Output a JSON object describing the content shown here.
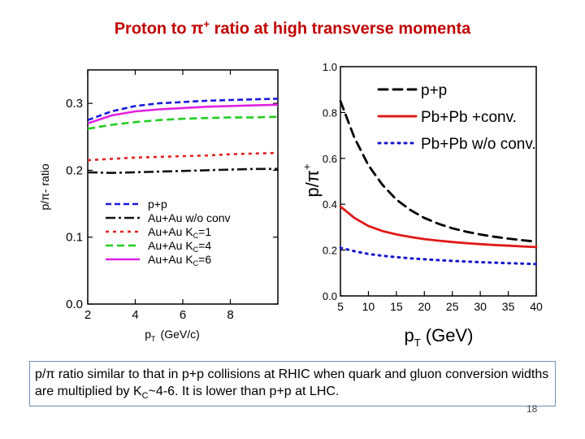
{
  "slide": {
    "title_main": "Proton to π",
    "title_sup": "+",
    "title_rest": " ratio at high transverse momenta",
    "caption_a": "p/π ratio similar to that in p+p collisions at RHIC when quark and gluon conversion widths are multiplied by K",
    "caption_sub": "C",
    "caption_b": "~4-6. It is lower than p+p at LHC.",
    "page_number": "18"
  },
  "chart_data": [
    {
      "type": "line",
      "title": "",
      "xlabel": "p T (GeV/c)",
      "ylabel": "p/π- ratio",
      "xlim": [
        2,
        10
      ],
      "ylim": [
        0,
        0.35
      ],
      "xticks": [
        2,
        4,
        6,
        8
      ],
      "xtick_labels": [
        "2",
        "4",
        "6",
        "8"
      ],
      "yticks": [
        0.0,
        0.1,
        0.2,
        0.3
      ],
      "ytick_labels": [
        "0.0",
        "0.1",
        "0.2",
        "0.3"
      ],
      "legend_position": "lower-right",
      "x": [
        2,
        3,
        4,
        5,
        6,
        7,
        8,
        9,
        10
      ],
      "series": [
        {
          "name": "p+p",
          "color": "#1a1adc",
          "dash": "7,4",
          "values": [
            0.275,
            0.288,
            0.296,
            0.3,
            0.302,
            0.304,
            0.305,
            0.306,
            0.307
          ]
        },
        {
          "name": "Au+Au w/o conv",
          "color": "#111111",
          "dash": "12,4,3,4",
          "values": [
            0.197,
            0.196,
            0.197,
            0.198,
            0.199,
            0.2,
            0.201,
            0.202,
            0.202
          ]
        },
        {
          "name": "Au+Au K",
          "sub": "C",
          "suffix": "=1",
          "color": "#e02020",
          "dash": "4,5",
          "values": [
            0.215,
            0.217,
            0.219,
            0.22,
            0.221,
            0.222,
            0.224,
            0.225,
            0.226
          ]
        },
        {
          "name": "Au+Au K",
          "sub": "C",
          "suffix": "=4",
          "color": "#22cc22",
          "dash": "9,5",
          "values": [
            0.262,
            0.268,
            0.272,
            0.275,
            0.277,
            0.278,
            0.279,
            0.279,
            0.28
          ]
        },
        {
          "name": "Au+Au K",
          "sub": "C",
          "suffix": "=6",
          "color": "#e020e0",
          "dash": "",
          "values": [
            0.27,
            0.282,
            0.288,
            0.291,
            0.293,
            0.295,
            0.296,
            0.297,
            0.298
          ]
        }
      ]
    },
    {
      "type": "line",
      "title": "",
      "xlabel": "p T (GeV)",
      "ylabel": "p/π +",
      "xlim": [
        5,
        40
      ],
      "ylim": [
        0,
        1.0
      ],
      "xticks": [
        5,
        10,
        15,
        20,
        25,
        30,
        35,
        40
      ],
      "xtick_labels": [
        "5",
        "10",
        "15",
        "20",
        "25",
        "30",
        "35",
        "40"
      ],
      "yticks": [
        0.0,
        0.2,
        0.4,
        0.6,
        0.8,
        1.0
      ],
      "ytick_labels": [
        "0.0",
        "0.2",
        "0.4",
        "0.6",
        "0.8",
        "1.0"
      ],
      "legend_position": "top-right",
      "x": [
        5,
        7.5,
        10,
        12.5,
        15,
        17.5,
        20,
        22.5,
        25,
        27.5,
        30,
        32.5,
        35,
        37.5,
        40
      ],
      "series": [
        {
          "name": "p+p",
          "color": "#000000",
          "dash": "11,7",
          "values": [
            0.85,
            0.69,
            0.57,
            0.485,
            0.42,
            0.375,
            0.34,
            0.315,
            0.295,
            0.28,
            0.268,
            0.258,
            0.25,
            0.243,
            0.237
          ]
        },
        {
          "name": "Pb+Pb +conv.",
          "color": "#e01818",
          "dash": "",
          "values": [
            0.39,
            0.34,
            0.305,
            0.283,
            0.268,
            0.257,
            0.248,
            0.241,
            0.235,
            0.23,
            0.226,
            0.222,
            0.219,
            0.216,
            0.213
          ]
        },
        {
          "name": "Pb+Pb w/o conv.",
          "color": "#1515cc",
          "dash": "2,6",
          "values": [
            0.21,
            0.195,
            0.183,
            0.175,
            0.169,
            0.164,
            0.16,
            0.156,
            0.153,
            0.15,
            0.147,
            0.145,
            0.143,
            0.141,
            0.139
          ]
        }
      ]
    }
  ]
}
